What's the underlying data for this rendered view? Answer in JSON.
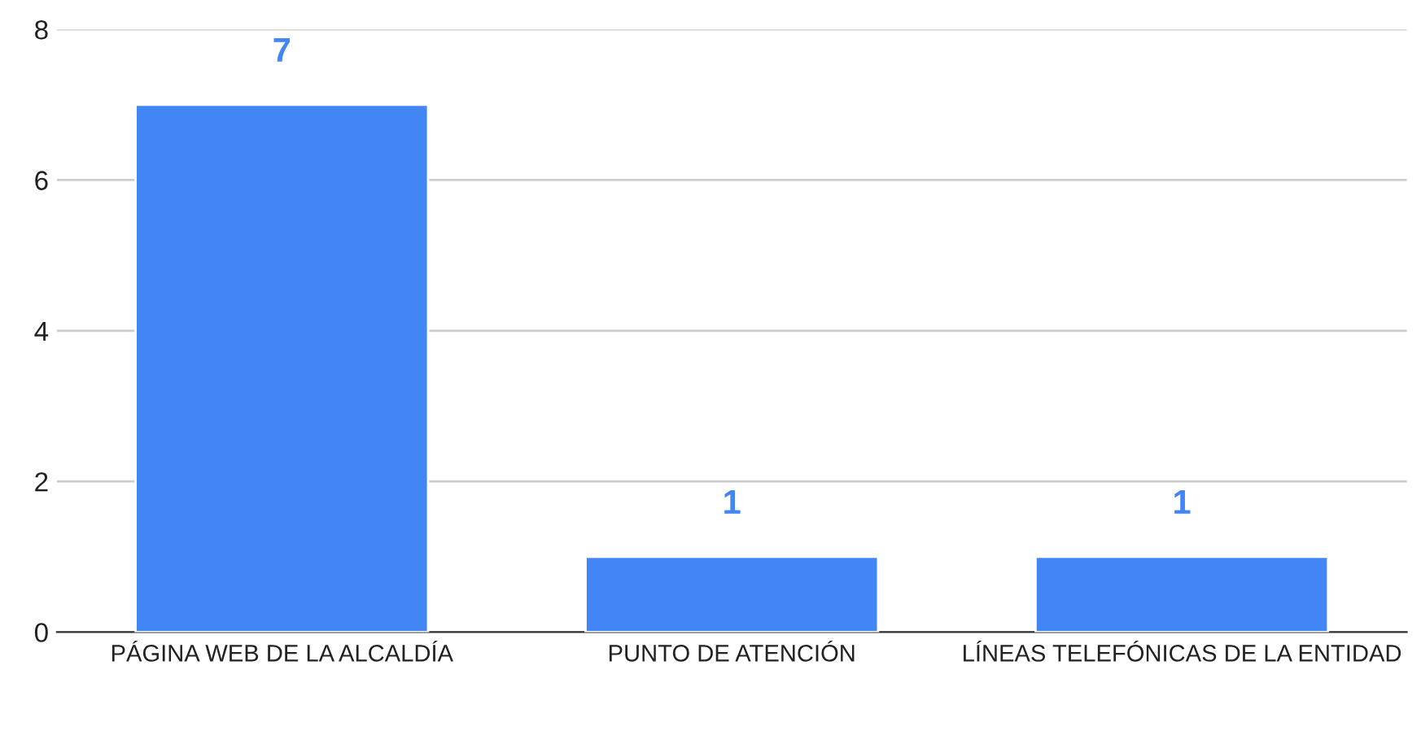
{
  "chart_data": {
    "type": "bar",
    "categories": [
      "PÁGINA WEB DE LA ALCALDÍA",
      "PUNTO DE ATENCIÓN",
      "LÍNEAS TELEFÓNICAS DE LA ENTIDAD"
    ],
    "values": [
      7,
      1,
      1
    ],
    "color": "#4285f4",
    "ylim": [
      0,
      8
    ],
    "yticks": [
      0,
      2,
      4,
      6,
      8
    ],
    "grid": "y",
    "data_labels": true
  }
}
